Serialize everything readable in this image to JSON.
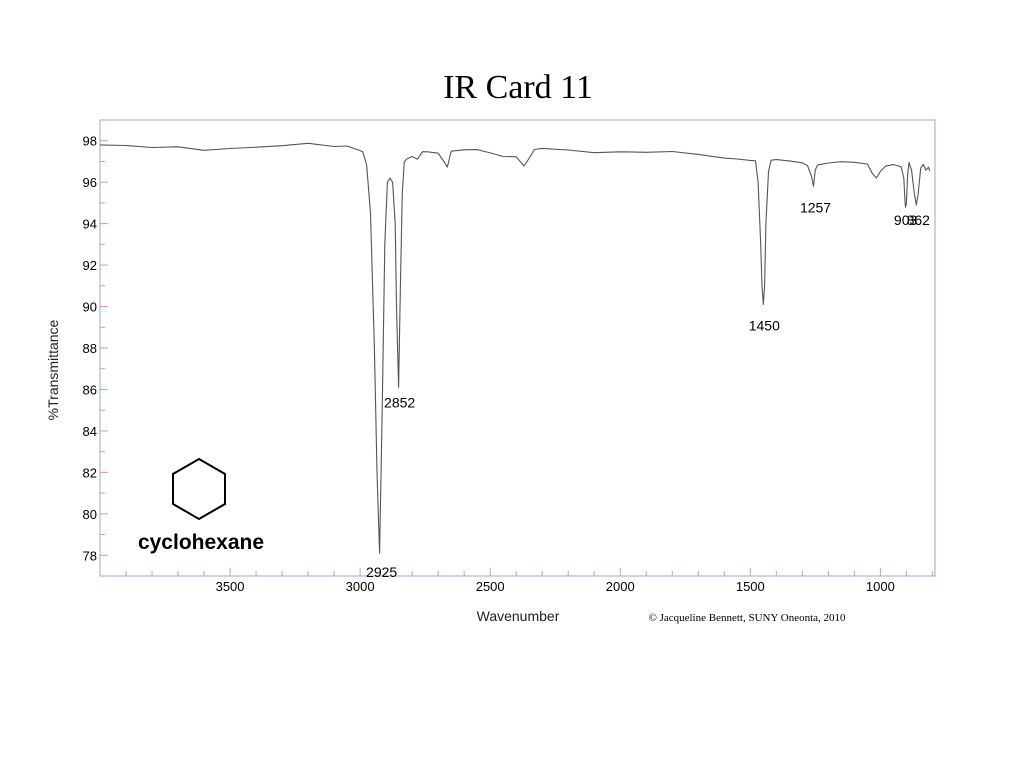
{
  "chart_data": {
    "type": "line",
    "title": "IR Card 11",
    "xlabel": "Wavenumber",
    "ylabel": "%Transmittance",
    "xlim": [
      4000,
      790
    ],
    "ylim": [
      77,
      99
    ],
    "x_reversed": true,
    "grid": false,
    "x_ticks": [
      3500,
      3000,
      2500,
      2000,
      1500,
      1000
    ],
    "y_ticks": [
      78,
      80,
      82,
      84,
      86,
      88,
      90,
      92,
      94,
      96,
      98
    ],
    "series": [
      {
        "color": "#555555",
        "x": [
          4000,
          3900,
          3800,
          3700,
          3600,
          3500,
          3400,
          3300,
          3200,
          3100,
          3050,
          3000,
          2990,
          2975,
          2960,
          2945,
          2935,
          2925,
          2915,
          2905,
          2895,
          2885,
          2875,
          2865,
          2860,
          2852,
          2845,
          2838,
          2830,
          2820,
          2800,
          2780,
          2760,
          2740,
          2700,
          2680,
          2665,
          2650,
          2600,
          2550,
          2500,
          2450,
          2400,
          2370,
          2350,
          2330,
          2300,
          2200,
          2100,
          2000,
          1900,
          1800,
          1700,
          1600,
          1550,
          1500,
          1480,
          1470,
          1460,
          1455,
          1450,
          1445,
          1440,
          1430,
          1420,
          1400,
          1350,
          1300,
          1280,
          1265,
          1257,
          1250,
          1240,
          1200,
          1150,
          1100,
          1050,
          1030,
          1015,
          1000,
          980,
          950,
          930,
          920,
          910,
          905,
          903,
          900,
          895,
          890,
          880,
          870,
          862,
          855,
          845,
          835,
          825,
          815,
          810
        ],
        "y": [
          97.8,
          97.7,
          97.6,
          97.7,
          97.6,
          97.7,
          97.7,
          97.7,
          97.8,
          97.7,
          97.8,
          97.6,
          97.5,
          96.8,
          94.5,
          88,
          82,
          78.1,
          85,
          93,
          96,
          96.2,
          96,
          94,
          90,
          86.1,
          91,
          95.5,
          97,
          97.2,
          97.3,
          97.1,
          97.4,
          97.4,
          97.4,
          97.1,
          96.8,
          97.5,
          97.5,
          97.5,
          97.4,
          97.3,
          97.3,
          96.8,
          97.1,
          97.5,
          97.6,
          97.6,
          97.5,
          97.5,
          97.4,
          97.4,
          97.3,
          97.2,
          97.2,
          97.1,
          97,
          96,
          93,
          91,
          90.1,
          91,
          94,
          96.5,
          97,
          97.1,
          97.1,
          97,
          96.8,
          96.3,
          95.8,
          96.6,
          96.9,
          97,
          97,
          96.9,
          96.8,
          96.4,
          96.2,
          96.6,
          96.8,
          96.8,
          96.7,
          96.7,
          96.2,
          95,
          94.8,
          95,
          96.4,
          96.9,
          96.6,
          95.5,
          94.9,
          95.4,
          96.6,
          96.8,
          96.6,
          96.8,
          96.6
        ]
      }
    ],
    "annotations": [
      {
        "label": "2925",
        "x": 2925,
        "y": 78.1
      },
      {
        "label": "2852",
        "x": 2852,
        "y": 86.1
      },
      {
        "label": "1450",
        "x": 1450,
        "y": 90.1
      },
      {
        "label": "1257",
        "x": 1257,
        "y": 95.8
      },
      {
        "label": "903",
        "x": 903,
        "y": 94.8
      },
      {
        "label": "862",
        "x": 862,
        "y": 94.9
      }
    ]
  },
  "compound": {
    "name": "cyclohexane",
    "structure_icon": "hexagon-icon"
  },
  "credit": "© Jacqueline Bennett, SUNY Oneonta, 2010"
}
